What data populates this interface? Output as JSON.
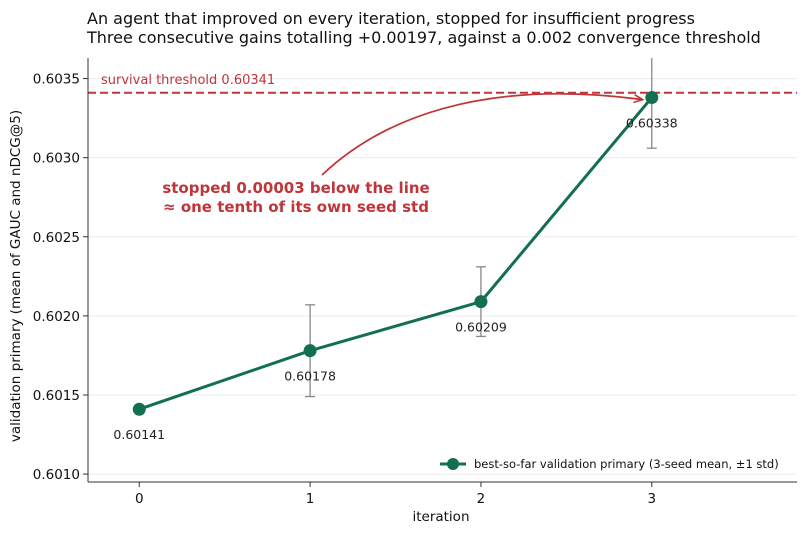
{
  "chart_data": {
    "type": "line",
    "title": "An agent that improved on every iteration, stopped for insufficient progress",
    "subtitle": "Three consecutive gains totalling +0.00197, against a 0.002 convergence threshold",
    "xlabel": "iteration",
    "ylabel": "validation primary  (mean of GAUC and nDCG@5)",
    "x": [
      0,
      1,
      2,
      3
    ],
    "xlim": [
      -0.3,
      3.85
    ],
    "ylim": [
      0.60095,
      0.60363
    ],
    "yticks": [
      0.601,
      0.6015,
      0.602,
      0.6025,
      0.603,
      0.6035
    ],
    "ytick_labels": [
      "0.6010",
      "0.6015",
      "0.6020",
      "0.6025",
      "0.6030",
      "0.6035"
    ],
    "xtick_labels": [
      "0",
      "1",
      "2",
      "3"
    ],
    "grid": "horizontal",
    "legend_position": "bottom-right",
    "series": [
      {
        "name": "best-so-far validation primary (3-seed mean, ±1 std)",
        "color": "#12704e",
        "values": [
          0.60141,
          0.60178,
          0.60209,
          0.60338
        ],
        "std": [
          2e-05,
          0.00029,
          0.00022,
          0.00032
        ],
        "point_labels": [
          "0.60141",
          "0.60178",
          "0.60209",
          "0.60338"
        ]
      }
    ],
    "threshold": {
      "value": 0.60341,
      "label": "survival threshold  0.60341",
      "color": "#c0353a"
    },
    "annotation": {
      "lines": [
        "stopped 0.00003 below the line",
        "≈ one tenth of its own seed std"
      ],
      "color": "#c0353a",
      "points_to_x": 3
    },
    "errorbar_color": "#888888"
  }
}
